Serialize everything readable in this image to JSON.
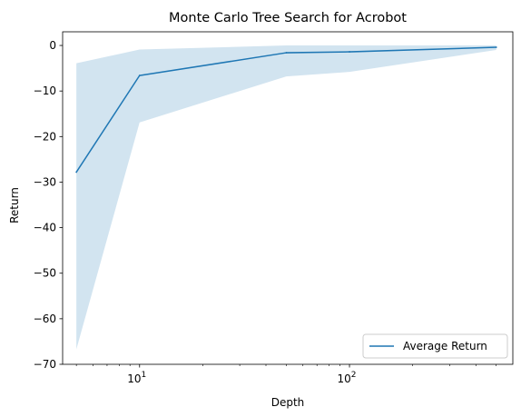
{
  "chart_data": {
    "type": "line",
    "title": "Monte Carlo Tree Search for Acrobot",
    "xlabel": "Depth",
    "ylabel": "Return",
    "x_scale": "log",
    "xlim": [
      4.3,
      600
    ],
    "ylim": [
      -70,
      3
    ],
    "x_major_ticks": [
      {
        "value": 10,
        "base": "10",
        "exp": "1"
      },
      {
        "value": 100,
        "base": "10",
        "exp": "2"
      }
    ],
    "x_minor_ticks": [
      5,
      6,
      7,
      8,
      9,
      20,
      30,
      40,
      50,
      60,
      70,
      80,
      90,
      200,
      300,
      400,
      500
    ],
    "y_ticks": [
      0,
      -10,
      -20,
      -30,
      -40,
      -50,
      -60,
      -70
    ],
    "y_tick_labels": [
      "0",
      "−10",
      "−20",
      "−30",
      "−40",
      "−50",
      "−60",
      "−70"
    ],
    "grid": false,
    "legend_position": "lower right",
    "series": [
      {
        "name": "Average Return",
        "color": "#1f77b4",
        "x": [
          5,
          10,
          50,
          100,
          500
        ],
        "y": [
          -27.8,
          -6.6,
          -1.6,
          -1.4,
          -0.4
        ],
        "lower": [
          -66.7,
          -16.9,
          -6.8,
          -5.8,
          -1.0
        ],
        "upper": [
          -3.9,
          -0.9,
          0.0,
          0.0,
          0.0
        ]
      }
    ]
  }
}
